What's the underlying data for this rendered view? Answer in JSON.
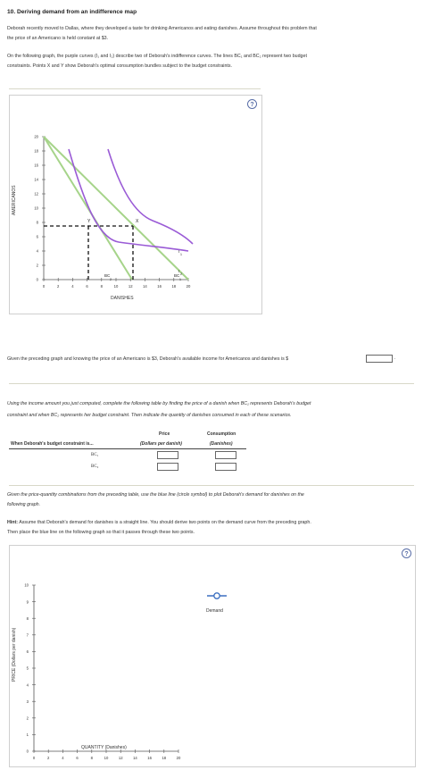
{
  "title": "10. Deriving demand from an indifference map",
  "intro": {
    "line1": "Deborah recently moved to Dallas, where they developed a taste for drinking Americanos and eating danishes. Assume throughout this problem that",
    "line2": "the price of an Americano is held constant at $3.",
    "line3": "On the following graph, the purple curves (I₁ and I₂) describe two of Deborah's indifference curves. The lines BC₁ and BC₂ represent two budget",
    "line4": "constraints. Points X and Y show Deborah's optimal consumption bundles subject to the budget constraints."
  },
  "graph1": {
    "ylabel": "AMERICANOS",
    "xlabel": "DANISHES",
    "yticks": [
      "20",
      "18",
      "16",
      "14",
      "12",
      "10",
      "8",
      "6",
      "4",
      "2",
      "0"
    ],
    "xticks": [
      "0",
      "2",
      "4",
      "6",
      "8",
      "10",
      "12",
      "14",
      "16",
      "18",
      "20"
    ],
    "point_y": "Y",
    "point_x": "X",
    "bc2": "BC",
    "bc2_sub": "2",
    "bc1": "BC",
    "bc1_sub": "1",
    "i1": "I",
    "i1_sub": "1",
    "i2": "I",
    "i2_sub": "2"
  },
  "income_question": {
    "text": "Given the preceding graph and knowing the price of an Americano is $3, Deborah's available income for Americanos and danishes is",
    "prefix": "$",
    "value": "",
    "suffix": "."
  },
  "table_instructions": {
    "line1": "Using the income amount you just computed, complete the following table by finding the price of a danish when BC₁ represents Deborah's budget",
    "line2": "constraint and when BC₂ represents her budget constraint. Then indicate the quantity of danishes consumed in each of these scenarios."
  },
  "table": {
    "col1_header": "When Deborah's budget constraint is...",
    "col2_header_1": "Price",
    "col2_header_2": "(Dollars per danish)",
    "col3_header_1": "Consumption",
    "col3_header_2": "(Danishes)",
    "rows": [
      {
        "label": "BC₁",
        "price": "",
        "consumption": ""
      },
      {
        "label": "BC₂",
        "price": "",
        "consumption": ""
      }
    ]
  },
  "plot_instructions": {
    "line1": "Given the price-quantity combinations from the preceding table, use the blue line (circle symbol) to plot Deborah's demand for danishes on the",
    "line2": "following graph.",
    "hint_label": "Hint:",
    "hint1": " Assume that Deborah's demand for danishes is a straight line. You should derive two points on the demand curve from the preceding graph.",
    "hint2": "Then place the blue line on the following graph so that it passes through these two points."
  },
  "graph2": {
    "ylabel": "PRICE (Dollars per danish)",
    "xlabel": "QUANTITY (Danishes)",
    "yticks": [
      "10",
      "9",
      "8",
      "7",
      "6",
      "5",
      "4",
      "3",
      "2",
      "1",
      "0"
    ],
    "xticks": [
      "0",
      "2",
      "4",
      "6",
      "8",
      "10",
      "12",
      "14",
      "16",
      "18",
      "20"
    ],
    "legend": "Demand"
  },
  "help_icon": "?",
  "colors": {
    "purple": "#9a5bd6",
    "green": "#a6d48a",
    "blue": "#3b6fc0",
    "dash": "#111111"
  }
}
